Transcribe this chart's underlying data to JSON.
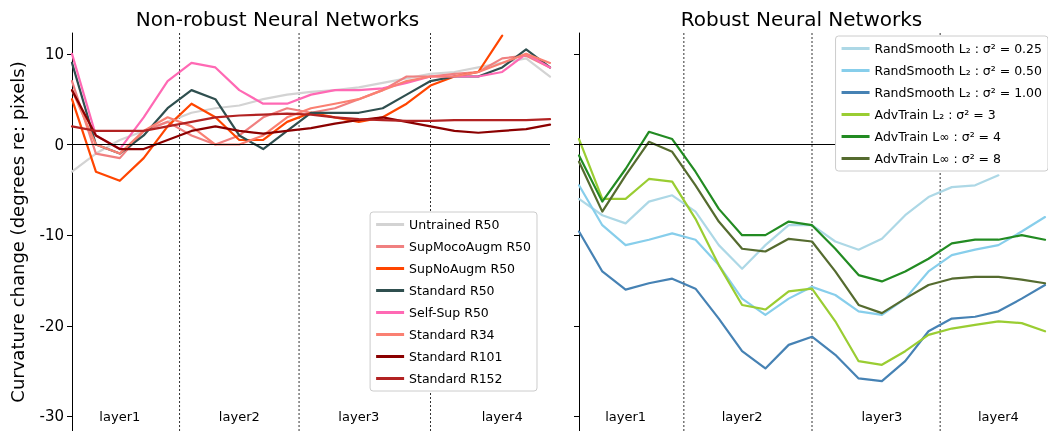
{
  "chart_data": [
    {
      "type": "line",
      "title": "Non-robust Neural Networks",
      "ylabel": "Curvature change (degrees re: pixels)",
      "categories": [
        null,
        null,
        "layer1",
        null,
        null,
        null,
        null,
        "layer2",
        null,
        null,
        null,
        null,
        "layer3",
        null,
        null,
        null,
        null,
        null,
        "layer4",
        null,
        null
      ],
      "ylim": [
        -31.6,
        12.3
      ],
      "yticks": [
        -30,
        -20,
        -10,
        0,
        10
      ],
      "marker": "none",
      "legend": "bottom right",
      "series": [
        {
          "name": "Untrained R50",
          "color": "#d3d3d3",
          "values": [
            -3,
            -1,
            0.5,
            1.5,
            2.5,
            3.5,
            4,
            4.3,
            5,
            5.5,
            5.8,
            6,
            6.3,
            6.8,
            7.3,
            7.8,
            8,
            8.5,
            9,
            9.5,
            7.5
          ]
        },
        {
          "name": "SupMocoAugm R50",
          "color": "#f08080",
          "values": [
            7,
            -1,
            -1.5,
            1.5,
            2.5,
            1,
            0,
            1,
            3,
            4,
            3.5,
            4,
            5,
            6,
            7.5,
            7.5,
            7.8,
            8,
            9.5,
            9.8,
            8.5
          ]
        },
        {
          "name": "SupNoAugm R50",
          "color": "#ff4500",
          "values": [
            5,
            -3,
            -4,
            -1.5,
            2,
            4.5,
            3,
            0.5,
            0.5,
            2.5,
            3.5,
            3,
            2.5,
            3,
            4.5,
            6.5,
            7.5,
            8,
            12,
            null,
            null
          ]
        },
        {
          "name": "Standard R50",
          "color": "#2f4f4f",
          "values": [
            9,
            0,
            -1,
            1,
            4,
            6,
            5,
            1,
            -0.5,
            1.5,
            3.5,
            3.5,
            3.5,
            4,
            5.5,
            7,
            7.5,
            7.5,
            8.5,
            10.5,
            8.5
          ]
        },
        {
          "name": "Self-Sup R50",
          "color": "#ff69b4",
          "values": [
            10,
            1,
            -0.5,
            3,
            7,
            9,
            8.5,
            6,
            4.5,
            4.5,
            5.5,
            6,
            6,
            6.2,
            6.8,
            7.5,
            7.5,
            7.5,
            8,
            10,
            8.5
          ]
        },
        {
          "name": "Standard R34",
          "color": "#fa8072",
          "values": [
            6,
            0,
            -1,
            1.5,
            3,
            2,
            0,
            0,
            1,
            3,
            4,
            4.5,
            5,
            6,
            7,
            7.5,
            7.5,
            8,
            9,
            10,
            9
          ]
        },
        {
          "name": "Standard R101",
          "color": "#8b0000",
          "values": [
            6,
            1,
            -0.5,
            -0.5,
            0.5,
            1.5,
            2,
            1.5,
            1.2,
            1.5,
            1.8,
            2.3,
            2.7,
            3,
            2.5,
            2,
            1.5,
            1.3,
            1.5,
            1.7,
            2.2
          ]
        },
        {
          "name": "Standard R152",
          "color": "#b22222",
          "values": [
            2,
            1.5,
            1.5,
            1.5,
            2,
            2.5,
            3,
            3.2,
            3.3,
            3.4,
            3.3,
            3,
            2.8,
            2.7,
            2.6,
            2.6,
            2.7,
            2.7,
            2.7,
            2.7,
            2.8
          ]
        }
      ],
      "ref_lines": [
        {
          "axis": "y",
          "value": 0,
          "color": "#000000"
        }
      ]
    },
    {
      "type": "line",
      "title": "Robust Neural Networks",
      "categories": [
        null,
        null,
        "layer1",
        null,
        null,
        null,
        null,
        "layer2",
        null,
        null,
        null,
        null,
        null,
        "layer3",
        null,
        null,
        null,
        null,
        "layer4",
        null,
        null
      ],
      "ylim": [
        -31.6,
        12.3
      ],
      "yticks": [
        -30,
        -20,
        -10,
        0,
        10
      ],
      "tick_labels": "x",
      "marker": "none",
      "legend": "top right",
      "series": [
        {
          "name": "RandSmooth L₂ : σ² = 0.25",
          "color": "#add8e6",
          "values": [
            -6,
            -7.8,
            -8.7,
            -6.3,
            -5.6,
            -7.4,
            -11.1,
            -13.7,
            -11.1,
            -8.9,
            -8.9,
            -10.7,
            -11.6,
            -10.4,
            -7.8,
            -5.8,
            -4.7,
            -4.5,
            -3.4,
            null,
            null
          ]
        },
        {
          "name": "RandSmooth L₂ : σ² = 0.50",
          "color": "#87ceeb",
          "values": [
            -4.5,
            -8.9,
            -11.1,
            -10.5,
            -9.8,
            -10.5,
            -13.3,
            -17,
            -18.8,
            -17,
            -15.7,
            -16.6,
            -18.4,
            -18.8,
            -17,
            -14,
            -12.2,
            -11.6,
            -11.1,
            -9.6,
            -8
          ]
        },
        {
          "name": "RandSmooth L₂ : σ² = 1.00",
          "color": "#4682b4",
          "values": [
            -9.6,
            -14,
            -16,
            -15.3,
            -14.8,
            -15.9,
            -19.2,
            -22.8,
            -24.7,
            -22.1,
            -21.2,
            -23.2,
            -25.8,
            -26.1,
            -23.9,
            -20.6,
            -19.2,
            -19,
            -18.4,
            -17,
            -15.5
          ]
        },
        {
          "name": "AdvTrain L₂ : σ² = 3",
          "color": "#9acd32",
          "values": [
            0.6,
            -6,
            -6,
            -3.8,
            -4.1,
            -8.2,
            -13.3,
            -17.7,
            -18.2,
            -16.2,
            -15.9,
            -19.5,
            -23.9,
            -24.3,
            -22.8,
            -21,
            -20.3,
            -19.9,
            -19.5,
            -19.7,
            -20.6
          ]
        },
        {
          "name": "AdvTrain L∞ : σ² = 4",
          "color": "#228b22",
          "values": [
            -1.2,
            -6.3,
            -2.7,
            1.4,
            0.6,
            -3,
            -7.1,
            -10,
            -10,
            -8.5,
            -8.9,
            -11.5,
            -14.4,
            -15.1,
            -14,
            -12.6,
            -10.9,
            -10.5,
            -10.5,
            -10,
            -10.5
          ]
        },
        {
          "name": "AdvTrain L∞ : σ² = 8",
          "color": "#556b2f",
          "values": [
            -1.9,
            -7.4,
            -3.4,
            0.3,
            -0.8,
            -4.5,
            -8.5,
            -11.5,
            -11.8,
            -10.4,
            -10.7,
            -14,
            -17.7,
            -18.6,
            -17,
            -15.5,
            -14.8,
            -14.6,
            -14.6,
            -14.9,
            -15.3
          ]
        }
      ],
      "ref_lines": [
        {
          "axis": "y",
          "value": 0,
          "color": "#000000"
        }
      ]
    }
  ]
}
